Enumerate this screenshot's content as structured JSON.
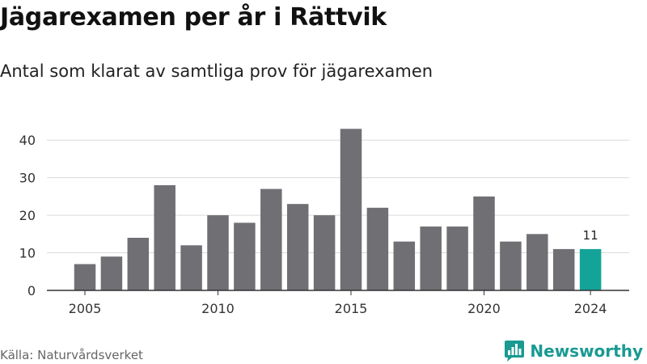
{
  "header": {
    "title": "Jägarexamen per år i Rättvik",
    "subtitle": "Antal som klarat av samtliga prov för jägarexamen"
  },
  "footer": {
    "source": "Källa: Naturvårdsverket",
    "brand": "Newsworthy",
    "brand_icon": "bar-chart-speech-bubble-icon"
  },
  "colors": {
    "bar": "#706f74",
    "highlight": "#14a398",
    "grid": "#d9d9d9",
    "axis": "#333333",
    "brand": "#199a92"
  },
  "chart_data": {
    "type": "bar",
    "title": "Jägarexamen per år i Rättvik",
    "subtitle": "Antal som klarat av samtliga prov för jägarexamen",
    "xlabel": "",
    "ylabel": "",
    "categories": [
      2005,
      2006,
      2007,
      2008,
      2009,
      2010,
      2011,
      2012,
      2013,
      2014,
      2015,
      2016,
      2017,
      2018,
      2019,
      2020,
      2021,
      2022,
      2023,
      2024
    ],
    "values": [
      7,
      9,
      14,
      28,
      12,
      20,
      18,
      27,
      23,
      20,
      43,
      22,
      13,
      17,
      17,
      25,
      13,
      15,
      11,
      11
    ],
    "highlight_category": 2024,
    "data_labels": [
      {
        "category": 2024,
        "label": "11"
      }
    ],
    "x_ticks": [
      2005,
      2010,
      2015,
      2020,
      2024
    ],
    "y_ticks": [
      0,
      10,
      20,
      30,
      40
    ],
    "ylim": [
      0,
      45
    ],
    "grid": "horizontal",
    "legend": "none"
  }
}
